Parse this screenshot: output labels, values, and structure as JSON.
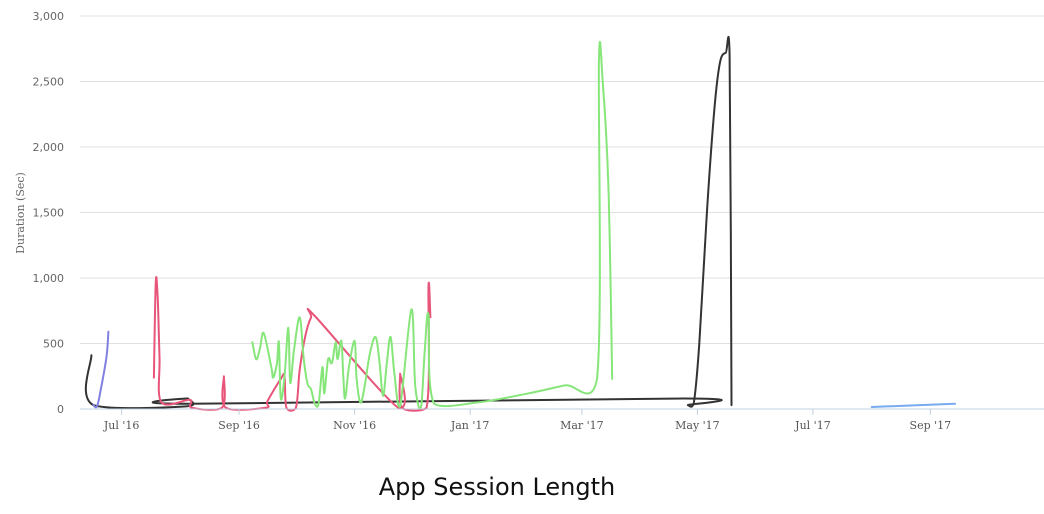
{
  "chart_data": {
    "type": "line",
    "title": "App Session Length",
    "xlabel": "",
    "ylabel": "Duration (Sec)",
    "ylim": [
      0,
      3000
    ],
    "xlim": [
      "2016-06-09",
      "2017-10-31"
    ],
    "yticks": [
      0,
      500,
      1000,
      1500,
      2000,
      2500,
      3000
    ],
    "ytick_labels": [
      "0",
      "500",
      "1,000",
      "1,500",
      "2,000",
      "2,500",
      "3,000"
    ],
    "xticks": [
      "2016-07-01",
      "2016-09-01",
      "2016-11-01",
      "2017-01-01",
      "2017-03-01",
      "2017-05-01",
      "2017-07-01",
      "2017-09-01"
    ],
    "xtick_labels": [
      "Jul '16",
      "Sep '16",
      "Nov '16",
      "Jan '17",
      "Mar '17",
      "May '17",
      "Jul '17",
      "Sep '17"
    ],
    "grid": true,
    "legend": "none",
    "series": [
      {
        "color": "#333333",
        "points": [
          [
            "2016-06-15",
            410
          ],
          [
            "2016-06-16",
            30
          ],
          [
            "2016-08-04",
            20
          ],
          [
            "2016-08-05",
            80
          ],
          [
            "2016-08-06",
            40
          ],
          [
            "2017-04-24",
            80
          ],
          [
            "2017-04-26",
            30
          ],
          [
            "2017-04-29",
            40
          ],
          [
            "2017-05-02",
            500
          ],
          [
            "2017-05-06",
            1500
          ],
          [
            "2017-05-10",
            2300
          ],
          [
            "2017-05-13",
            2650
          ],
          [
            "2017-05-16",
            2720
          ],
          [
            "2017-05-18",
            2700
          ],
          [
            "2017-05-19",
            30
          ]
        ]
      },
      {
        "color": "#8080e0",
        "points": [
          [
            "2016-06-16",
            30
          ],
          [
            "2016-06-18",
            20
          ],
          [
            "2016-06-20",
            150
          ],
          [
            "2016-06-23",
            400
          ],
          [
            "2016-06-24",
            590
          ]
        ]
      },
      {
        "color": "#e8557a",
        "points": [
          [
            "2016-07-18",
            240
          ],
          [
            "2016-07-19",
            970
          ],
          [
            "2016-07-20",
            850
          ],
          [
            "2016-07-21",
            400
          ],
          [
            "2016-07-22",
            50
          ],
          [
            "2016-08-06",
            70
          ],
          [
            "2016-08-07",
            10
          ],
          [
            "2016-08-23",
            10
          ],
          [
            "2016-08-24",
            250
          ],
          [
            "2016-08-25",
            10
          ],
          [
            "2016-09-15",
            10
          ],
          [
            "2016-09-16",
            60
          ],
          [
            "2016-09-23",
            230
          ],
          [
            "2016-09-25",
            250
          ],
          [
            "2016-09-26",
            10
          ],
          [
            "2016-10-01",
            10
          ],
          [
            "2016-10-03",
            300
          ],
          [
            "2016-10-06",
            560
          ],
          [
            "2016-10-09",
            700
          ],
          [
            "2016-10-11",
            710
          ],
          [
            "2016-11-24",
            10
          ],
          [
            "2016-11-25",
            270
          ],
          [
            "2016-11-26",
            10
          ],
          [
            "2016-12-09",
            10
          ],
          [
            "2016-12-10",
            940
          ],
          [
            "2016-12-11",
            700
          ]
        ]
      },
      {
        "color": "#86e67a",
        "points": [
          [
            "2016-09-08",
            510
          ],
          [
            "2016-09-10",
            380
          ],
          [
            "2016-09-12",
            460
          ],
          [
            "2016-09-14",
            580
          ],
          [
            "2016-09-18",
            320
          ],
          [
            "2016-09-19",
            240
          ],
          [
            "2016-09-21",
            350
          ],
          [
            "2016-09-22",
            510
          ],
          [
            "2016-09-23",
            80
          ],
          [
            "2016-09-25",
            250
          ],
          [
            "2016-09-27",
            620
          ],
          [
            "2016-09-28",
            200
          ],
          [
            "2016-09-30",
            450
          ],
          [
            "2016-10-03",
            700
          ],
          [
            "2016-10-05",
            400
          ],
          [
            "2016-10-07",
            200
          ],
          [
            "2016-10-09",
            150
          ],
          [
            "2016-10-11",
            40
          ],
          [
            "2016-10-13",
            40
          ],
          [
            "2016-10-15",
            320
          ],
          [
            "2016-10-16",
            120
          ],
          [
            "2016-10-18",
            380
          ],
          [
            "2016-10-20",
            350
          ],
          [
            "2016-10-22",
            510
          ],
          [
            "2016-10-23",
            380
          ],
          [
            "2016-10-25",
            520
          ],
          [
            "2016-10-26",
            250
          ],
          [
            "2016-10-27",
            80
          ],
          [
            "2016-10-29",
            320
          ],
          [
            "2016-11-01",
            520
          ],
          [
            "2016-11-02",
            240
          ],
          [
            "2016-11-04",
            50
          ],
          [
            "2016-11-06",
            150
          ],
          [
            "2016-11-09",
            420
          ],
          [
            "2016-11-12",
            550
          ],
          [
            "2016-11-14",
            380
          ],
          [
            "2016-11-16",
            100
          ],
          [
            "2016-11-18",
            350
          ],
          [
            "2016-11-20",
            550
          ],
          [
            "2016-11-22",
            270
          ],
          [
            "2016-11-25",
            20
          ],
          [
            "2016-12-01",
            760
          ],
          [
            "2016-12-03",
            180
          ],
          [
            "2016-12-06",
            10
          ],
          [
            "2016-12-08",
            440
          ],
          [
            "2016-12-10",
            720
          ],
          [
            "2016-12-13",
            40
          ],
          [
            "2017-01-05",
            50
          ],
          [
            "2017-02-01",
            120
          ],
          [
            "2017-02-20",
            180
          ],
          [
            "2017-03-09",
            230
          ],
          [
            "2017-03-10",
            2650
          ],
          [
            "2017-03-12",
            2500
          ],
          [
            "2017-03-15",
            1700
          ],
          [
            "2017-03-17",
            230
          ]
        ]
      },
      {
        "color": "#77aaee",
        "points": [
          [
            "2017-08-01",
            15
          ],
          [
            "2017-09-14",
            40
          ]
        ]
      }
    ]
  }
}
